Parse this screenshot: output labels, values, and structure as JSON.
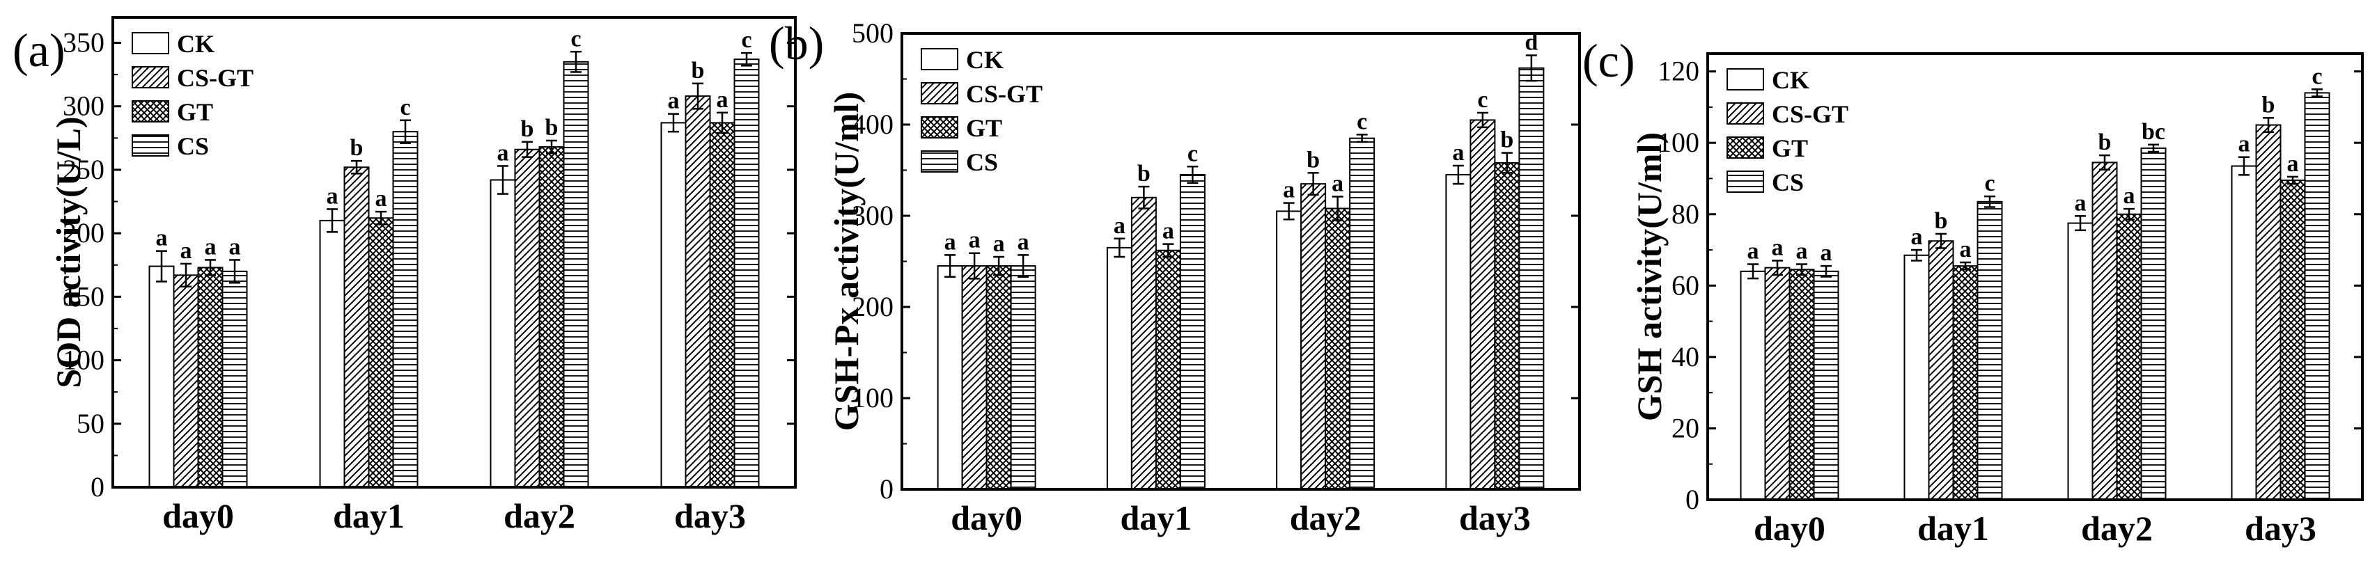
{
  "figure": {
    "categories": [
      "day0",
      "day1",
      "day2",
      "day3"
    ],
    "series_names": [
      "CK",
      "CS-GT",
      "GT",
      "CS"
    ]
  },
  "chart_data": [
    {
      "type": "bar",
      "panel_label": "(a)",
      "title": "",
      "xlabel": "",
      "ylabel": "SOD activity(U/L)",
      "ylim": [
        0,
        370
      ],
      "yticks": [
        0,
        50,
        100,
        150,
        200,
        250,
        300,
        350
      ],
      "categories": [
        "day0",
        "day1",
        "day2",
        "day3"
      ],
      "legend_position": "top-left",
      "series": [
        {
          "name": "CK",
          "pattern": "blank",
          "values": [
            174,
            210,
            242,
            287
          ],
          "errors": [
            12,
            9,
            11,
            7
          ],
          "letters": [
            "a",
            "a",
            "a",
            "a"
          ]
        },
        {
          "name": "CS-GT",
          "pattern": "diagonal",
          "values": [
            167,
            252,
            266,
            308
          ],
          "errors": [
            9,
            5,
            6,
            10
          ],
          "letters": [
            "a",
            "b",
            "b",
            "b"
          ]
        },
        {
          "name": "GT",
          "pattern": "crosshatch",
          "values": [
            173,
            212,
            268,
            287
          ],
          "errors": [
            6,
            5,
            5,
            8
          ],
          "letters": [
            "a",
            "a",
            "b",
            "a"
          ]
        },
        {
          "name": "CS",
          "pattern": "horizontal",
          "values": [
            170,
            280,
            335,
            337
          ],
          "errors": [
            9,
            9,
            8,
            5
          ],
          "letters": [
            "a",
            "c",
            "c",
            "c"
          ]
        }
      ]
    },
    {
      "type": "bar",
      "panel_label": "(b)",
      "title": "",
      "xlabel": "",
      "ylabel": "GSH-Px activity(U/ml)",
      "ylim": [
        0,
        500
      ],
      "yticks": [
        0,
        100,
        200,
        300,
        400,
        500
      ],
      "categories": [
        "day0",
        "day1",
        "day2",
        "day3"
      ],
      "legend_position": "top-left",
      "series": [
        {
          "name": "CK",
          "pattern": "blank",
          "values": [
            245,
            265,
            305,
            345
          ],
          "errors": [
            12,
            10,
            9,
            10
          ],
          "letters": [
            "a",
            "a",
            "a",
            "a"
          ]
        },
        {
          "name": "CS-GT",
          "pattern": "diagonal",
          "values": [
            245,
            320,
            335,
            405
          ],
          "errors": [
            14,
            12,
            12,
            8
          ],
          "letters": [
            "a",
            "b",
            "b",
            "c"
          ]
        },
        {
          "name": "GT",
          "pattern": "crosshatch",
          "values": [
            245,
            262,
            308,
            358
          ],
          "errors": [
            10,
            7,
            13,
            11
          ],
          "letters": [
            "a",
            "a",
            "a",
            "b"
          ]
        },
        {
          "name": "CS",
          "pattern": "horizontal",
          "values": [
            245,
            345,
            385,
            462
          ],
          "errors": [
            12,
            9,
            4,
            14
          ],
          "letters": [
            "a",
            "c",
            "c",
            "d"
          ]
        }
      ]
    },
    {
      "type": "bar",
      "panel_label": "(c)",
      "title": "",
      "xlabel": "",
      "ylabel": "GSH activity(U/ml)",
      "ylim": [
        0,
        125
      ],
      "yticks": [
        0,
        20,
        40,
        60,
        80,
        100,
        120
      ],
      "categories": [
        "day0",
        "day1",
        "day2",
        "day3"
      ],
      "legend_position": "top-left",
      "series": [
        {
          "name": "CK",
          "pattern": "blank",
          "values": [
            64,
            68.5,
            77.5,
            93.5
          ],
          "errors": [
            2,
            1.5,
            2,
            2.5
          ],
          "letters": [
            "a",
            "a",
            "a",
            "a"
          ]
        },
        {
          "name": "CS-GT",
          "pattern": "diagonal",
          "values": [
            65,
            72.5,
            94.5,
            105
          ],
          "errors": [
            2,
            2,
            2,
            2
          ],
          "letters": [
            "a",
            "b",
            "b",
            "b"
          ]
        },
        {
          "name": "GT",
          "pattern": "crosshatch",
          "values": [
            64.5,
            65.5,
            80,
            89.5
          ],
          "errors": [
            1.5,
            1,
            1.5,
            1
          ],
          "letters": [
            "a",
            "a",
            "a",
            "a"
          ]
        },
        {
          "name": "CS",
          "pattern": "horizontal",
          "values": [
            64,
            83.5,
            98.5,
            114
          ],
          "errors": [
            1.5,
            1.5,
            1,
            1
          ],
          "letters": [
            "a",
            "c",
            "bc",
            "c"
          ]
        }
      ]
    }
  ]
}
